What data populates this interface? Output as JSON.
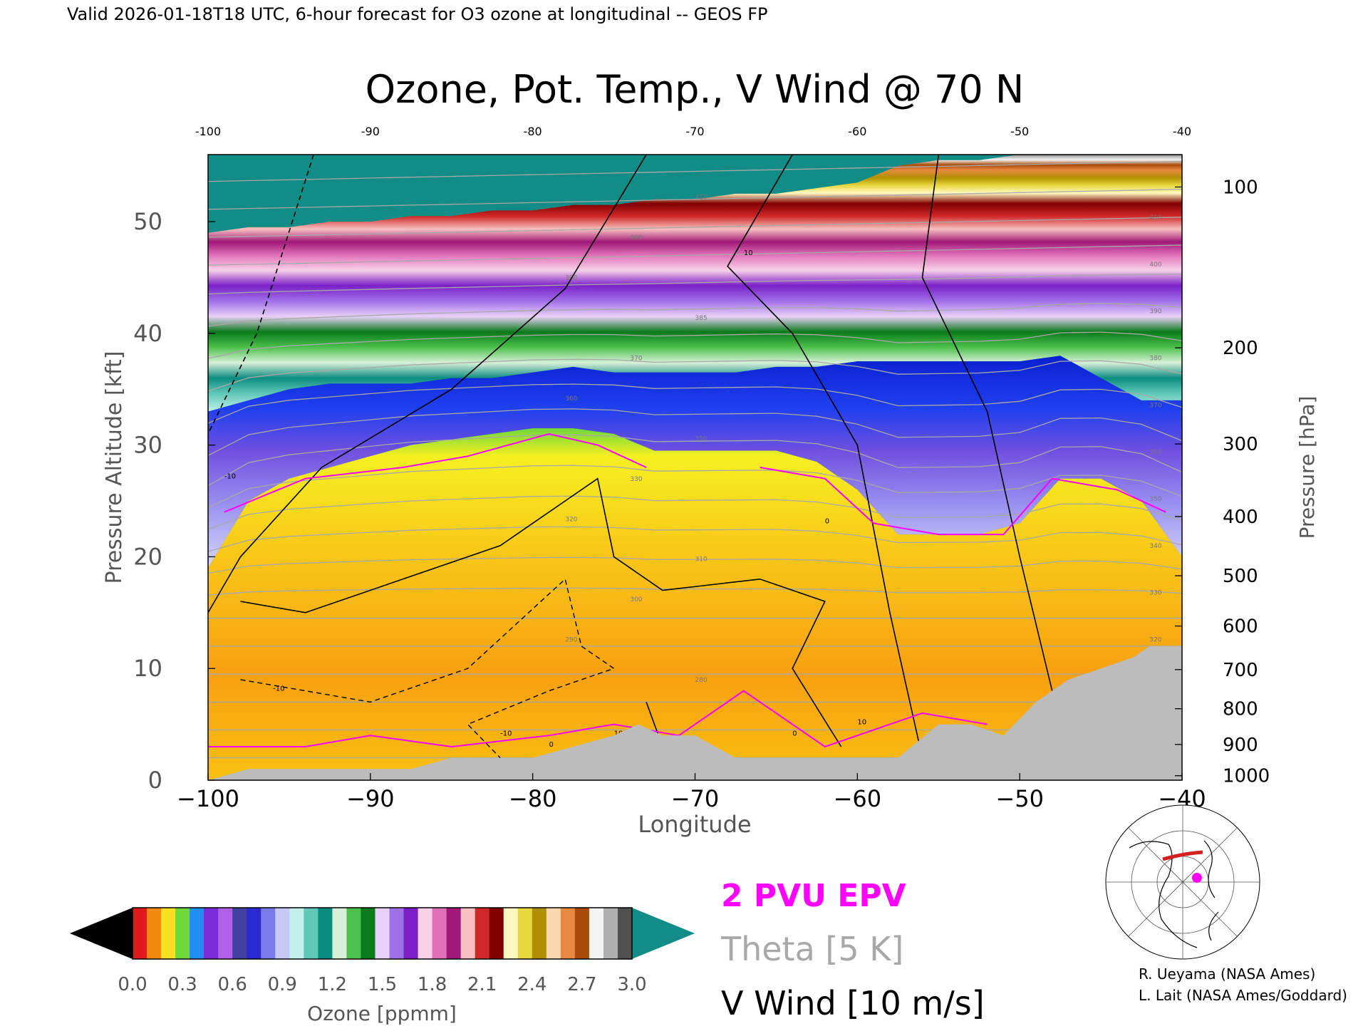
{
  "header": {
    "valid_line": "Valid 2026-01-18T18 UTC, 6-hour forecast for O3 ozone at longitudinal -- GEOS FP"
  },
  "chart_data": {
    "type": "heatmap",
    "title": "Ozone, Pot. Temp., V Wind @ 70 N",
    "xlabel": "Longitude",
    "ylabel_left": "Pressure Altitude [kft]",
    "ylabel_right": "Pressure [hPa]",
    "xlim": [
      -100,
      -40
    ],
    "ylim": [
      0,
      56
    ],
    "x_ticks": [
      -100,
      -90,
      -80,
      -70,
      -60,
      -50,
      -40
    ],
    "x_tick_labels": [
      "−100",
      "−90",
      "−80",
      "−70",
      "−60",
      "−50",
      "−40"
    ],
    "x_top_tick_labels": [
      "-100",
      "-90",
      "-80",
      "-70",
      "-60",
      "-50",
      "-40"
    ],
    "y_ticks": [
      0,
      10,
      20,
      30,
      40,
      50
    ],
    "y_tick_labels": [
      "0",
      "10",
      "20",
      "30",
      "40",
      "50"
    ],
    "pressure_ticks": [
      {
        "hpa": "100",
        "kft": 53.1
      },
      {
        "hpa": "200",
        "kft": 38.7
      },
      {
        "hpa": "300",
        "kft": 30.1
      },
      {
        "hpa": "400",
        "kft": 23.6
      },
      {
        "hpa": "500",
        "kft": 18.3
      },
      {
        "hpa": "600",
        "kft": 13.8
      },
      {
        "hpa": "700",
        "kft": 9.9
      },
      {
        "hpa": "800",
        "kft": 6.4
      },
      {
        "hpa": "900",
        "kft": 3.2
      },
      {
        "hpa": "1000",
        "kft": 0.4
      }
    ],
    "grid": false,
    "ozone_boundaries": {
      "x": [
        -100,
        -97.5,
        -95,
        -92.5,
        -90,
        -87.5,
        -85,
        -82.5,
        -80,
        -77.5,
        -75,
        -72.5,
        -70,
        -67.5,
        -65,
        -62.5,
        -60,
        -57.5,
        -55,
        -52.5,
        -50,
        -47.5,
        -45,
        -42.5,
        -40
      ],
      "tropo_top_kft": [
        19,
        25,
        27,
        28,
        29,
        30,
        30.5,
        31,
        31.5,
        31.5,
        31,
        29.5,
        29.5,
        29.5,
        29.5,
        28.5,
        26,
        22,
        22,
        22,
        23,
        27,
        27,
        25,
        20
      ],
      "strat_low_kft": [
        33,
        34,
        35,
        35.5,
        35.5,
        35.5,
        36,
        36,
        36.5,
        37,
        36.5,
        36.5,
        36.5,
        36.5,
        37,
        37,
        37.5,
        37.5,
        37.5,
        37.5,
        37.5,
        38,
        36,
        34,
        34
      ],
      "strat_top_kft": [
        49,
        49.5,
        49.5,
        50,
        50,
        50.5,
        50.5,
        51,
        51,
        51.5,
        51.5,
        52,
        52,
        52.5,
        52.5,
        53,
        53.5,
        55,
        55.5,
        55.5,
        56,
        56,
        56,
        56,
        56
      ]
    },
    "orography_kft": {
      "x": [
        -100,
        -97.5,
        -95,
        -92.5,
        -90,
        -87.5,
        -85,
        -82.5,
        -80,
        -77.5,
        -75,
        -73.5,
        -72,
        -70,
        -67.5,
        -65,
        -62.5,
        -60,
        -57.5,
        -55,
        -53,
        -51,
        -49,
        -47,
        -45,
        -43,
        -42,
        -40
      ],
      "h": [
        0,
        1,
        1,
        1,
        1,
        1,
        2,
        2,
        2,
        3,
        4,
        5,
        4,
        4,
        2,
        2,
        2,
        2,
        2,
        5,
        5,
        4,
        7,
        9,
        10,
        11,
        12,
        12
      ]
    },
    "colorbar": {
      "label": "Ozone [ppmm]",
      "ticks": [
        "0.0",
        "0.3",
        "0.6",
        "0.9",
        "1.2",
        "1.5",
        "1.8",
        "2.1",
        "2.4",
        "2.7",
        "3.0"
      ],
      "colors": [
        "#e01a1a",
        "#f08a10",
        "#f6e020",
        "#6fd83a",
        "#1f8ef0",
        "#7b2cd8",
        "#b060e8",
        "#4040a0",
        "#2a2ad0",
        "#7a7ae8",
        "#c8c8f8",
        "#bff0ea",
        "#60c8b8",
        "#0c8c80",
        "#d8f0d8",
        "#4cc04c",
        "#0a7a1a",
        "#e8d0f8",
        "#a070e8",
        "#7a20c8",
        "#f8d0e8",
        "#e070b8",
        "#a01878",
        "#f8c0c0",
        "#d02828",
        "#800000",
        "#fff8c0",
        "#e8d840",
        "#b09000",
        "#f8d8b0",
        "#e88840",
        "#a84a08",
        "#f4f4f4",
        "#b0b0b0",
        "#505050"
      ],
      "below_color": "#000000",
      "above_color": "#118c86"
    },
    "legend": {
      "epv_label": "2 PVU EPV",
      "theta_label": "Theta [5 K]",
      "vwind_label": "V Wind [10 m/s]",
      "epv_color": "#ff00ff",
      "theta_color": "#a8a8a8",
      "vwind_color": "#000000"
    },
    "theta_contour_labels": [
      "410",
      "400",
      "390",
      "385",
      "370",
      "360",
      "350",
      "330",
      "320",
      "310",
      "300",
      "290",
      "280",
      "290",
      "310",
      "320",
      "330",
      "340",
      "350",
      "360",
      "370",
      "380",
      "390",
      "400",
      "410"
    ],
    "vwind_contour_labels": [
      "-10",
      "10",
      "0",
      "-10",
      "10",
      "0",
      "-10",
      "0",
      "10"
    ]
  },
  "credits": {
    "line1": "R. Ueyama (NASA Ames)",
    "line2": "L. Lait (NASA Ames/Goddard)"
  },
  "colors": {
    "stratosphere_top": "#118c86",
    "orography": "#bcbcbc",
    "epv": "#ff00ff",
    "theta": "#a8a8a8"
  }
}
